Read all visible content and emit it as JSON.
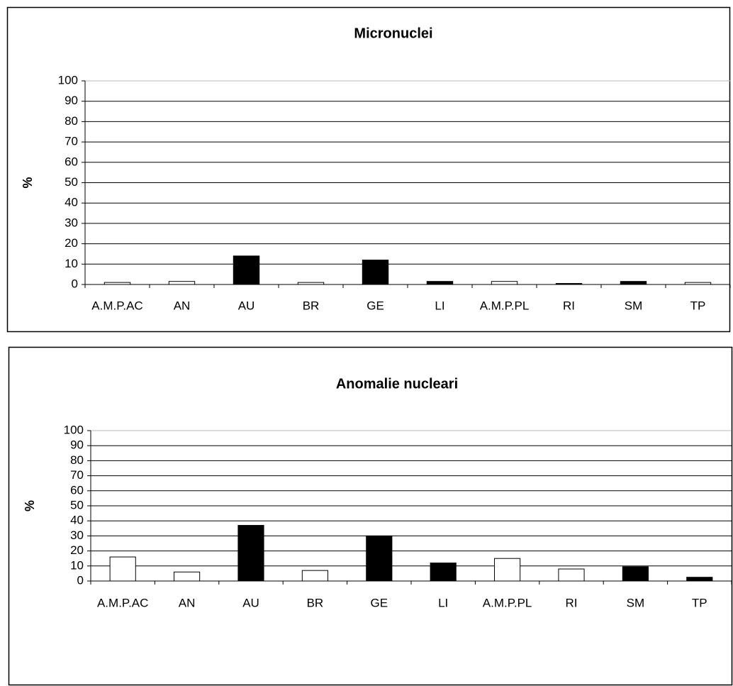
{
  "chart_data": [
    {
      "type": "bar",
      "title": "Micronuclei",
      "y_label": "%",
      "categories": [
        "A.M.P.AC",
        "AN",
        "AU",
        "BR",
        "GE",
        "LI",
        "A.M.P.PL",
        "RI",
        "SM",
        "TP"
      ],
      "values": [
        1,
        1.5,
        14,
        1,
        12,
        1.5,
        1.5,
        0.5,
        1.5,
        1
      ],
      "colors": [
        "#ffffff",
        "#ffffff",
        "#000000",
        "#ffffff",
        "#000000",
        "#000000",
        "#ffffff",
        "#000000",
        "#000000",
        "#ffffff"
      ],
      "ylim": [
        0,
        100
      ],
      "yticks": [
        0,
        10,
        20,
        30,
        40,
        50,
        60,
        70,
        80,
        90,
        100
      ],
      "grid": true
    },
    {
      "type": "bar",
      "title": "Anomalie nucleari",
      "y_label": "%",
      "categories": [
        "A.M.P.AC",
        "AN",
        "AU",
        "BR",
        "GE",
        "LI",
        "A.M.P.PL",
        "RI",
        "SM",
        "TP"
      ],
      "values": [
        16,
        6,
        37,
        7,
        30,
        12,
        15,
        8,
        9.5,
        2.5
      ],
      "colors": [
        "#ffffff",
        "#ffffff",
        "#000000",
        "#ffffff",
        "#000000",
        "#000000",
        "#ffffff",
        "#ffffff",
        "#000000",
        "#000000"
      ],
      "ylim": [
        0,
        100
      ],
      "yticks": [
        0,
        10,
        20,
        30,
        40,
        50,
        60,
        70,
        80,
        90,
        100
      ],
      "grid": true
    }
  ]
}
